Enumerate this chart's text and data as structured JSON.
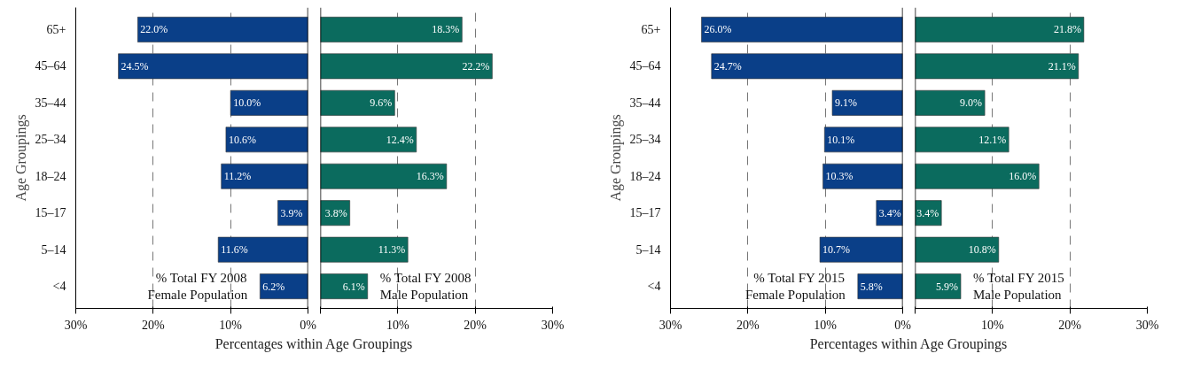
{
  "chart_data": [
    {
      "type": "bar",
      "orientation": "horizontal",
      "xlabel": "Percentages within Age Groupings",
      "ylabel": "Age Groupings",
      "categories": [
        "65+",
        "45–64",
        "35–44",
        "25–34",
        "18–24",
        "15–17",
        "5–14",
        "<4"
      ],
      "xlim": [
        30,
        0
      ],
      "xticks": [
        {
          "value": 30,
          "label": "30%"
        },
        {
          "value": 20,
          "label": "20%"
        },
        {
          "value": 10,
          "label": "10%"
        },
        {
          "value": 0,
          "label": "0%"
        }
      ],
      "grid": "x",
      "series": [
        {
          "name": "% Total FY 2008\nFemale Population",
          "color": "#0a3f88",
          "values": [
            22.0,
            24.5,
            10.0,
            10.6,
            11.2,
            3.9,
            11.6,
            6.2
          ],
          "value_labels": [
            "22.0%",
            "24.5%",
            "10.0%",
            "10.6%",
            "11.2%",
            "3.9%",
            "11.6%",
            "6.2%"
          ]
        }
      ]
    },
    {
      "type": "bar",
      "orientation": "horizontal",
      "categories": [
        null,
        null,
        null,
        null,
        null,
        null,
        null,
        null
      ],
      "xlim": [
        0,
        30
      ],
      "xticks": [
        {
          "value": 0,
          "label": null
        },
        {
          "value": 10,
          "label": "10%"
        },
        {
          "value": 20,
          "label": "20%"
        },
        {
          "value": 30,
          "label": "30%"
        }
      ],
      "grid": "x",
      "tick_labels": "x",
      "series": [
        {
          "name": "% Total FY 2008\nMale Population",
          "color": "#0b6b5e",
          "values": [
            18.3,
            22.2,
            9.6,
            12.4,
            16.3,
            3.8,
            11.3,
            6.1
          ],
          "value_labels": [
            "18.3%",
            "22.2%",
            "9.6%",
            "12.4%",
            "16.3%",
            "3.8%",
            "11.3%",
            "6.1%"
          ]
        }
      ]
    },
    {
      "type": "bar",
      "orientation": "horizontal",
      "xlabel": "Percentages within Age Groupings",
      "ylabel": "Age Groupings",
      "categories": [
        "65+",
        "45–64",
        "35–44",
        "25–34",
        "18–24",
        "15–17",
        "5–14",
        "<4"
      ],
      "xlim": [
        30,
        0
      ],
      "xticks": [
        {
          "value": 30,
          "label": "30%"
        },
        {
          "value": 20,
          "label": "20%"
        },
        {
          "value": 10,
          "label": "10%"
        },
        {
          "value": 0,
          "label": "0%"
        }
      ],
      "grid": "x",
      "series": [
        {
          "name": "% Total FY 2015\nFemale Population",
          "color": "#0a3f88",
          "values": [
            26.0,
            24.7,
            9.1,
            10.1,
            10.3,
            3.4,
            10.7,
            5.8
          ],
          "value_labels": [
            "26.0%",
            "24.7%",
            "9.1%",
            "10.1%",
            "10.3%",
            "3.4%",
            "10.7%",
            "5.8%"
          ]
        }
      ]
    },
    {
      "type": "bar",
      "orientation": "horizontal",
      "categories": [
        null,
        null,
        null,
        null,
        null,
        null,
        null,
        null
      ],
      "xlim": [
        0,
        30
      ],
      "xticks": [
        {
          "value": 0,
          "label": null
        },
        {
          "value": 10,
          "label": "10%"
        },
        {
          "value": 20,
          "label": "20%"
        },
        {
          "value": 30,
          "label": "30%"
        }
      ],
      "grid": "x",
      "tick_labels": "x",
      "series": [
        {
          "name": "% Total FY 2015\nMale Population",
          "color": "#0b6b5e",
          "values": [
            21.8,
            21.1,
            9.0,
            12.1,
            16.0,
            3.4,
            10.8,
            5.9
          ],
          "value_labels": [
            "21.8%",
            "21.1%",
            "9.0%",
            "12.1%",
            "16.0%",
            "3.4%",
            "10.8%",
            "5.9%"
          ]
        }
      ]
    }
  ]
}
